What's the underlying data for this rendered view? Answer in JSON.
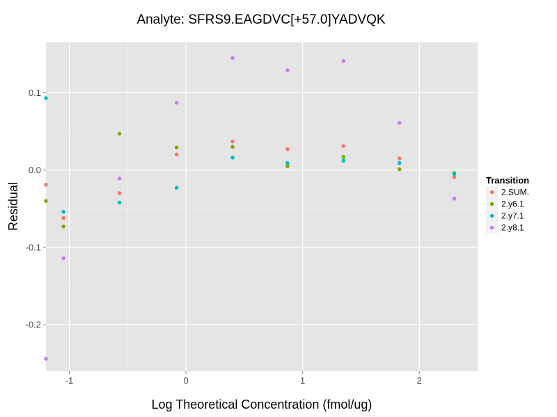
{
  "chart_data": {
    "type": "scatter",
    "title": "Analyte: SFRS9.EAGDVC[+57.0]YADVQK",
    "xlabel": "Log Theoretical Concentration (fmol/ug)",
    "ylabel": "Residual",
    "xlim": [
      -1.2,
      2.5
    ],
    "ylim": [
      -0.26,
      0.165
    ],
    "x_ticks": [
      -1,
      0,
      1,
      2
    ],
    "x_tick_labels": [
      "-1",
      "0",
      "1",
      "2"
    ],
    "y_ticks": [
      0.1,
      0.0,
      -0.1,
      -0.2
    ],
    "y_tick_labels": [
      "0.1",
      "0.0",
      "-0.1",
      "-0.2"
    ],
    "grid": true,
    "legend": {
      "title": "Transition",
      "placement": "right"
    },
    "series": [
      {
        "name": "2.SUM.",
        "color": "#F8766D",
        "points": [
          [
            -1.2,
            -0.019
          ],
          [
            -1.05,
            -0.062
          ],
          [
            -0.57,
            -0.03
          ],
          [
            -0.08,
            0.02
          ],
          [
            0.4,
            0.037
          ],
          [
            0.87,
            0.027
          ],
          [
            1.35,
            0.031
          ],
          [
            1.83,
            0.015
          ],
          [
            2.3,
            -0.009
          ]
        ]
      },
      {
        "name": "2.y6.1",
        "color": "#7CAE00",
        "points": [
          [
            -1.2,
            -0.04
          ],
          [
            -1.05,
            -0.073
          ],
          [
            -0.57,
            0.047
          ],
          [
            -0.08,
            0.029
          ],
          [
            0.4,
            0.03
          ],
          [
            0.87,
            0.005
          ],
          [
            1.35,
            0.017
          ],
          [
            1.83,
            0.001
          ],
          [
            2.3,
            -0.004
          ]
        ]
      },
      {
        "name": "2.y7.1",
        "color": "#00BFC4",
        "points": [
          [
            -1.2,
            0.093
          ],
          [
            -1.05,
            -0.054
          ],
          [
            -0.57,
            -0.042
          ],
          [
            -0.08,
            -0.023
          ],
          [
            0.4,
            0.016
          ],
          [
            0.87,
            0.009
          ],
          [
            1.35,
            0.012
          ],
          [
            1.83,
            0.009
          ],
          [
            2.3,
            -0.005
          ]
        ]
      },
      {
        "name": "2.y8.1",
        "color": "#C77CFF",
        "points": [
          [
            -1.2,
            -0.244
          ],
          [
            -1.05,
            -0.114
          ],
          [
            -0.57,
            -0.011
          ],
          [
            -0.08,
            0.087
          ],
          [
            0.4,
            0.145
          ],
          [
            0.87,
            0.129
          ],
          [
            1.35,
            0.141
          ],
          [
            1.83,
            0.061
          ],
          [
            2.3,
            -0.037
          ]
        ]
      }
    ]
  }
}
